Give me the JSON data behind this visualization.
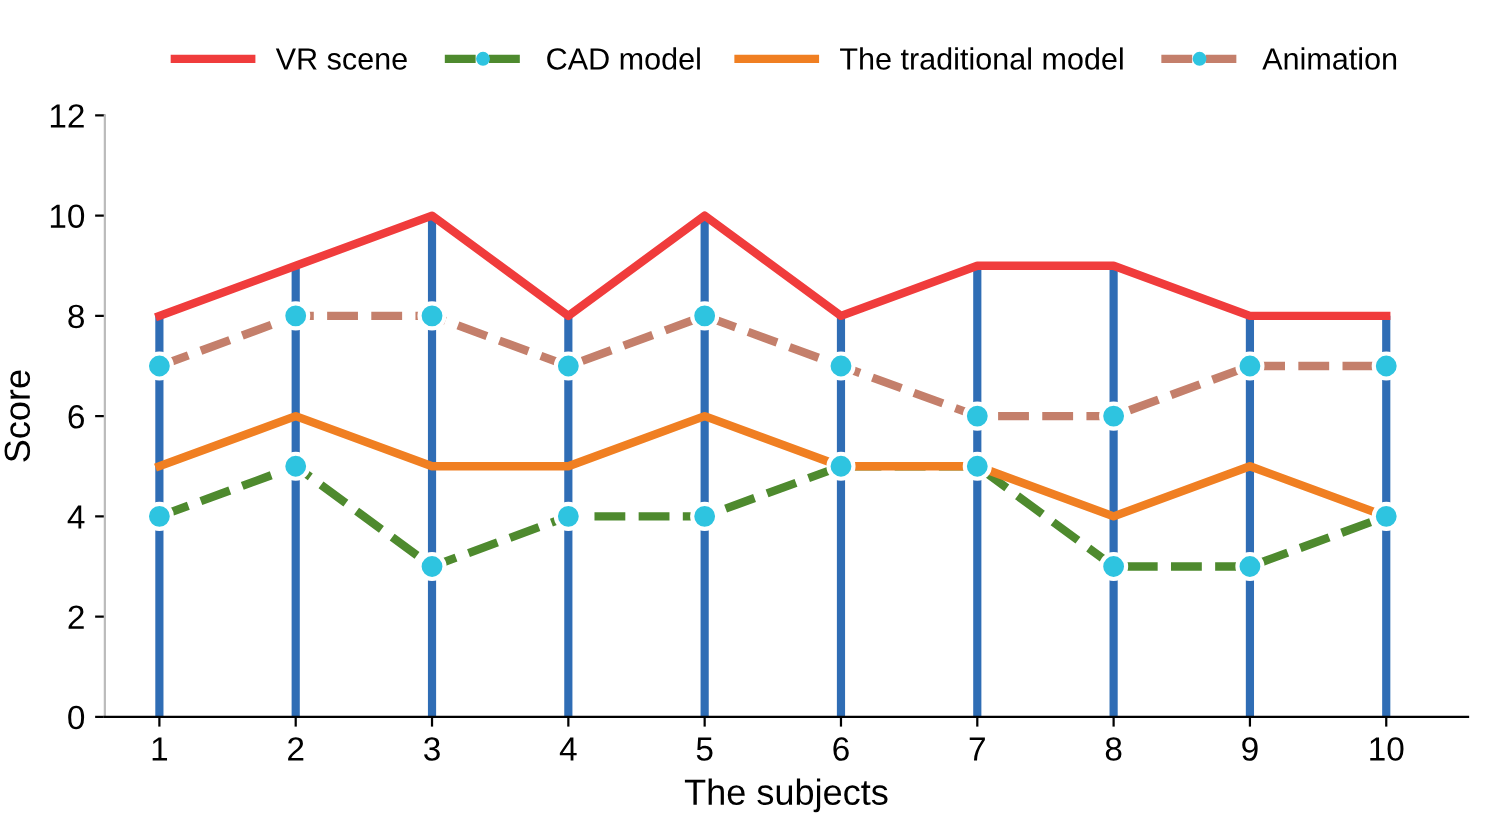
{
  "chart_data": {
    "type": "line",
    "xlabel": "The subjects",
    "ylabel": "Score",
    "categories": [
      "1",
      "2",
      "3",
      "4",
      "5",
      "6",
      "7",
      "8",
      "9",
      "10"
    ],
    "ylim": [
      0,
      12
    ],
    "yticks": [
      0,
      2,
      4,
      6,
      8,
      10,
      12
    ],
    "grid": false,
    "legend": "top",
    "series": [
      {
        "type": "bar",
        "color": "#2f6db5",
        "values": [
          8,
          9,
          10,
          8,
          10,
          8,
          9,
          9,
          8,
          8
        ]
      },
      {
        "name": "VR scene",
        "color": "#f03c3c",
        "values": [
          8,
          9,
          10,
          8,
          10,
          8,
          9,
          9,
          8,
          8
        ],
        "line_style": "solid",
        "marker": "none"
      },
      {
        "name": "CAD model",
        "color": "#4e8a2e",
        "values": [
          4,
          5,
          3,
          4,
          4,
          5,
          5,
          3,
          3,
          4
        ],
        "line_style": "dashed",
        "marker": "circle"
      },
      {
        "name": "The traditional model",
        "color": "#f07f22",
        "values": [
          5,
          6,
          5,
          5,
          6,
          5,
          5,
          4,
          5,
          4
        ],
        "line_style": "solid",
        "marker": "none"
      },
      {
        "name": "Animation",
        "color": "#c47f6b",
        "values": [
          7,
          8,
          8,
          7,
          8,
          7,
          6,
          6,
          7,
          7
        ],
        "line_style": "dashed",
        "marker": "circle"
      }
    ]
  }
}
